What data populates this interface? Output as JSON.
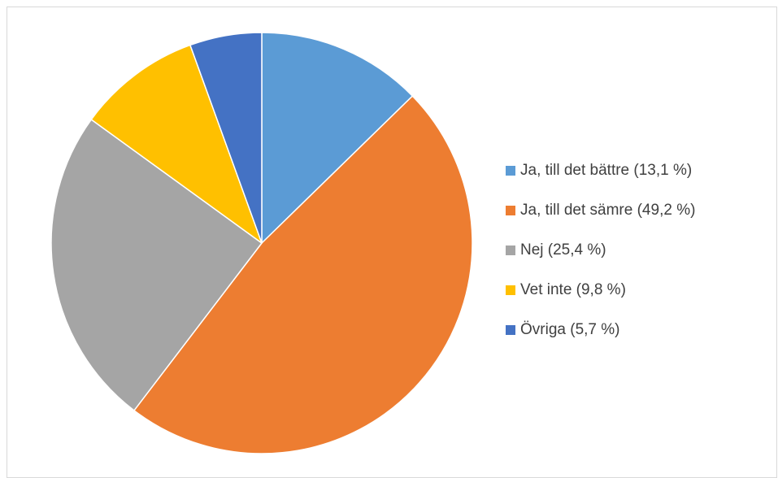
{
  "chart_data": {
    "type": "pie",
    "title": "",
    "legend_position": "right",
    "start_angle_deg": 0,
    "direction": "clockwise",
    "series": [
      {
        "categories": [
          "Ja, till det bättre (13,1 %)",
          "Ja, till det sämre (49,2 %)",
          "Nej (25,4 %)",
          "Vet inte (9,8 %)",
          "Övriga (5,7 %)"
        ],
        "values": [
          13.1,
          49.2,
          25.4,
          9.8,
          5.7
        ],
        "colors": [
          "#5b9bd5",
          "#ed7d31",
          "#a5a5a5",
          "#ffc000",
          "#4472c4"
        ]
      }
    ]
  }
}
